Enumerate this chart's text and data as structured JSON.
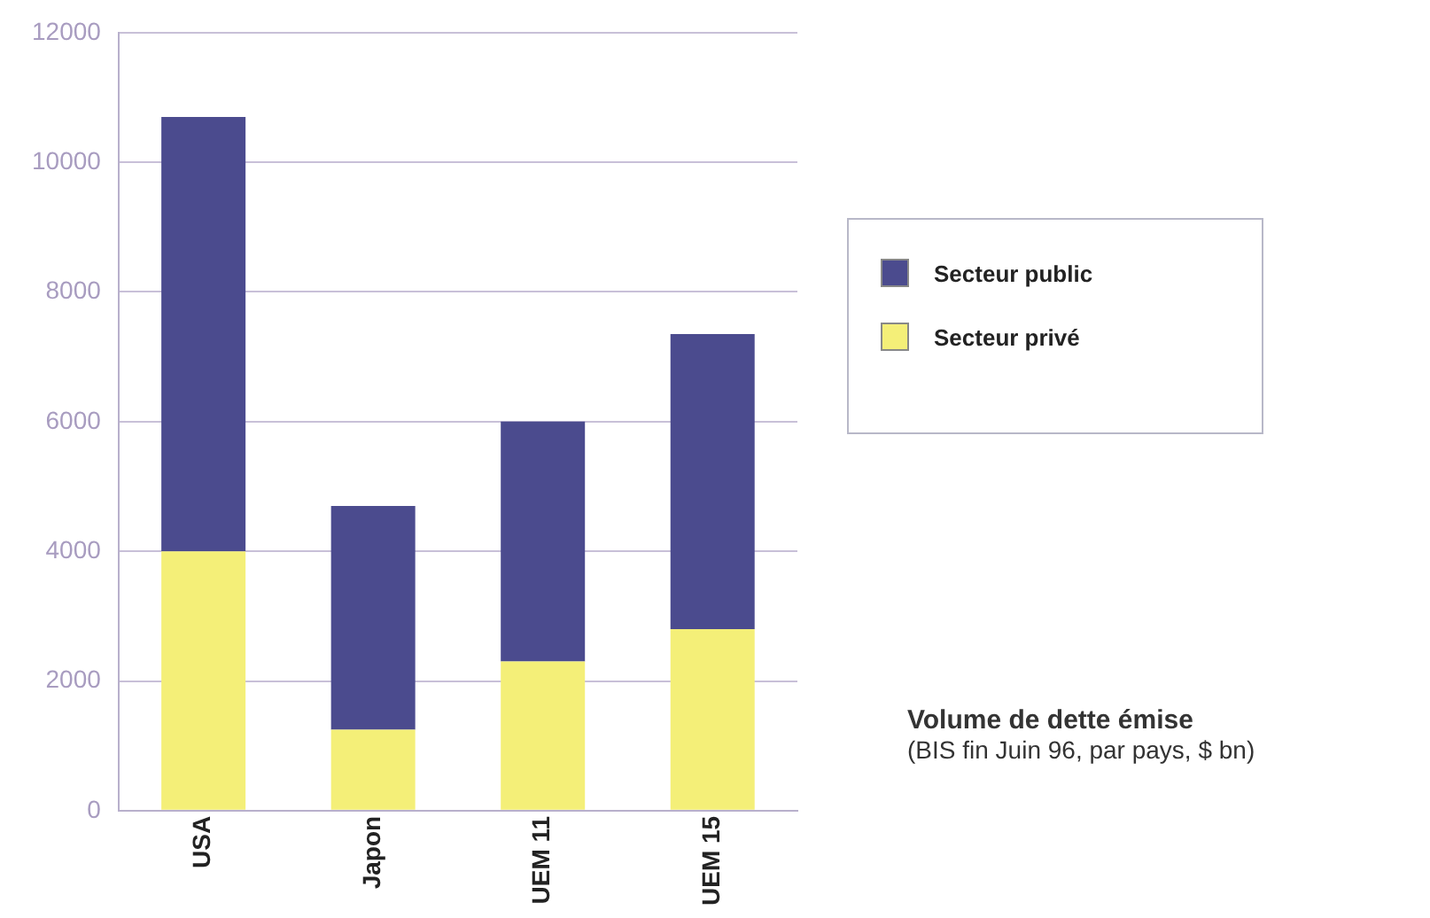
{
  "chart_data": {
    "type": "bar",
    "stacked": true,
    "categories": [
      "USA",
      "Japon",
      "UEM 11",
      "UEM 15"
    ],
    "series": [
      {
        "name": "Secteur privé",
        "color": "#f4ef78",
        "values": [
          4000,
          1250,
          2300,
          2800
        ]
      },
      {
        "name": "Secteur public",
        "color": "#4b4b8e",
        "values": [
          6700,
          3450,
          3700,
          4550
        ]
      }
    ],
    "ylim": [
      0,
      12000
    ],
    "yticks": [
      0,
      2000,
      4000,
      6000,
      8000,
      10000,
      12000
    ],
    "grid": "y",
    "legend": "right",
    "annotations": [
      "Volume de dette émise",
      "(BIS fin Juin 96, par pays, $ bn)"
    ]
  }
}
